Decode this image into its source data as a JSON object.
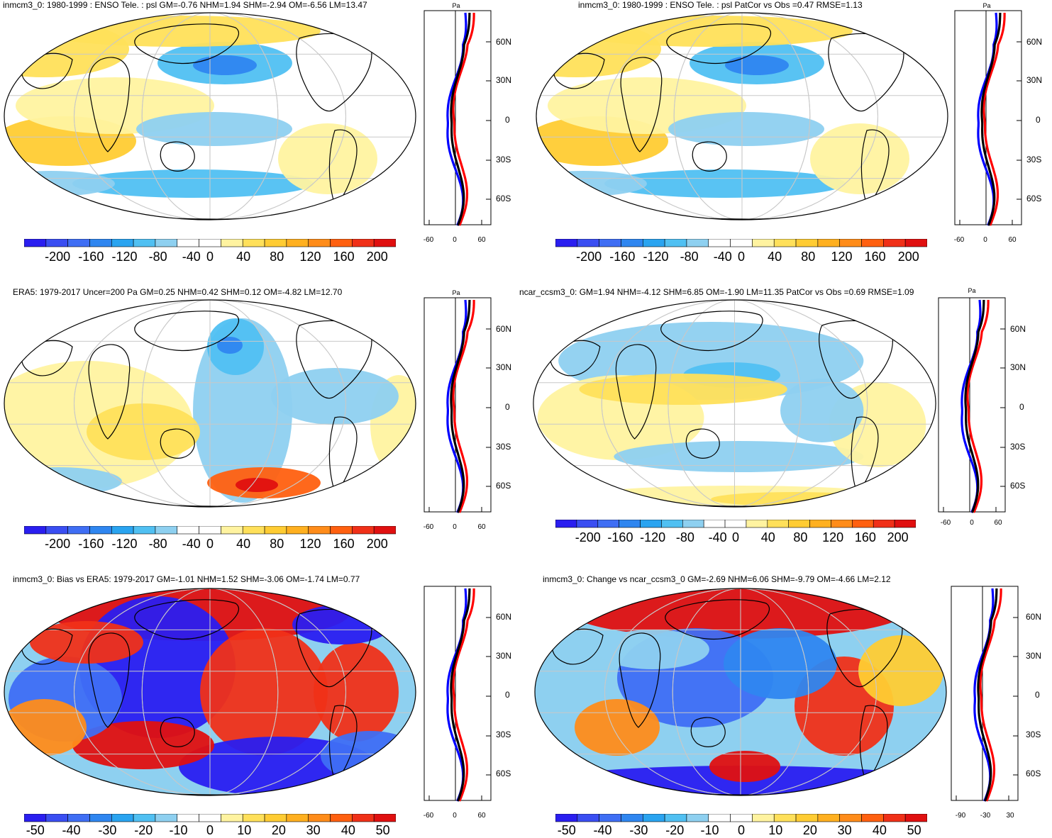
{
  "colors": {
    "scale": [
      "#2a1ef0",
      "#3a4ef2",
      "#3f6ef4",
      "#2f86f0",
      "#2aa4f0",
      "#50c0f2",
      "#8ed0f0",
      "#ffffff",
      "#ffffff",
      "#fff3a0",
      "#ffe05a",
      "#ffcc33",
      "#ffb020",
      "#ff8c1a",
      "#ff6010",
      "#f03018",
      "#e01010"
    ],
    "continent_line": "#000000",
    "grid_line": "#c8c8c8",
    "profile_model": "#0000ff",
    "profile_obs": "#ff0000",
    "profile_diff": "#000000"
  },
  "panels": [
    {
      "title": "inmcm3_0: 1980-1999 : ENSO Tele. : psl GM=-0.76 NHM=1.94 SHM=-2.94 OM=-6.56 LM=13.47",
      "colorbar_labels": [
        "-200",
        "-160",
        "-120",
        "-80",
        "-40",
        "0",
        "40",
        "80",
        "120",
        "160",
        "200"
      ],
      "zonal": {
        "unit": "Pa",
        "lat_labels": [
          "60N",
          "30N",
          "0",
          "30S",
          "60S"
        ],
        "x_labels": [
          "-60",
          "0",
          "60"
        ]
      }
    },
    {
      "title": "inmcm3_0: 1980-1999 : ENSO Tele. : psl PatCor vs Obs =0.47 RMSE=1.13",
      "colorbar_labels": [
        "-200",
        "-160",
        "-120",
        "-80",
        "-40",
        "0",
        "40",
        "80",
        "120",
        "160",
        "200"
      ],
      "zonal": {
        "unit": "Pa",
        "lat_labels": [
          "60N",
          "30N",
          "0",
          "30S",
          "60S"
        ],
        "x_labels": [
          "-60",
          "0",
          "60"
        ]
      }
    },
    {
      "title": "ERA5: 1979-2017 Uncer=200 Pa GM=0.25 NHM=0.42 SHM=0.12 OM=-4.82 LM=12.70",
      "colorbar_labels": [
        "-200",
        "-160",
        "-120",
        "-80",
        "-40",
        "0",
        "40",
        "80",
        "120",
        "160",
        "200"
      ],
      "zonal": {
        "unit": "Pa",
        "lat_labels": [
          "60N",
          "30N",
          "0",
          "30S",
          "60S"
        ],
        "x_labels": [
          "-60",
          "0",
          "60"
        ]
      }
    },
    {
      "title": "ncar_ccsm3_0: GM=1.94 NHM=-4.12 SHM=6.85 OM=-1.90 LM=11.35 PatCor vs Obs =0.69 RMSE=1.09",
      "colorbar_labels": [
        "-200",
        "-160",
        "-120",
        "-80",
        "-40",
        "0",
        "40",
        "80",
        "120",
        "160",
        "200"
      ],
      "zonal": {
        "unit": "Pa",
        "lat_labels": [
          "60N",
          "30N",
          "0",
          "30S",
          "60S"
        ],
        "x_labels": [
          "-60",
          "0",
          "60"
        ]
      }
    },
    {
      "title": "inmcm3_0: Bias vs ERA5: 1979-2017 GM=-1.01 NHM=1.52 SHM=-3.06 OM=-1.74 LM=0.77",
      "colorbar_labels": [
        "-50",
        "-40",
        "-30",
        "-20",
        "-10",
        "0",
        "10",
        "20",
        "30",
        "40",
        "50"
      ],
      "zonal": {
        "unit": "Pa",
        "lat_labels": [
          "60N",
          "30N",
          "0",
          "30S",
          "60S"
        ],
        "x_labels": [
          "-60",
          "0",
          "60"
        ]
      }
    },
    {
      "title": "inmcm3_0: Change vs ncar_ccsm3_0 GM=-2.69 NHM=6.06 SHM=-9.79 OM=-4.66 LM=2.12",
      "colorbar_labels": [
        "-50",
        "-40",
        "-30",
        "-20",
        "-10",
        "0",
        "10",
        "20",
        "30",
        "40",
        "50"
      ],
      "zonal": {
        "unit": "Pa",
        "lat_labels": [
          "60N",
          "30N",
          "0",
          "30S",
          "60S"
        ],
        "x_labels": [
          "-90",
          "-30",
          "30"
        ]
      }
    }
  ]
}
